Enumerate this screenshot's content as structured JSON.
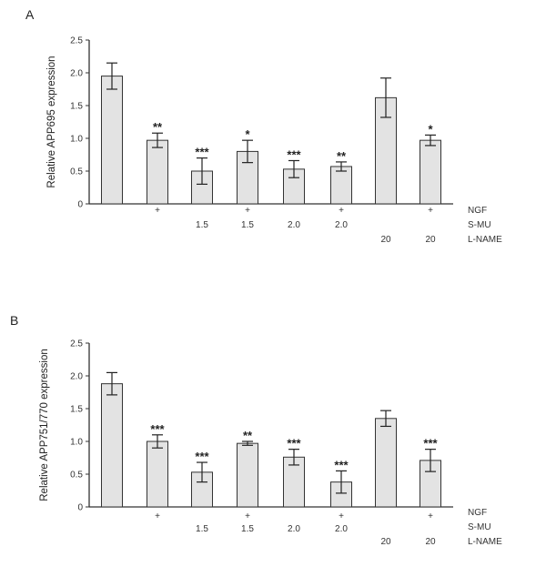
{
  "chart_data": [
    {
      "type": "bar",
      "panel_label": "A",
      "ylabel": "Relative APP695 expression",
      "ylim": [
        0,
        2.5
      ],
      "yticks": [
        "0",
        "0.5",
        "1.0",
        "1.5",
        "2.0",
        "2.5"
      ],
      "row_labels": [
        "NGF",
        "S-MU",
        "L-NAME"
      ],
      "conditions": {
        "ngf": [
          "",
          "+",
          "",
          "+",
          "",
          "+",
          "",
          "+"
        ],
        "smu": [
          "",
          "",
          "1.5",
          "1.5",
          "2.0",
          "2.0",
          "",
          ""
        ],
        "lname": [
          "",
          "",
          "",
          "",
          "",
          "",
          "20",
          "20"
        ]
      },
      "values": [
        1.95,
        0.97,
        0.5,
        0.8,
        0.53,
        0.57,
        1.62,
        0.97
      ],
      "errors": [
        0.2,
        0.11,
        0.2,
        0.17,
        0.13,
        0.07,
        0.3,
        0.08
      ],
      "significance": [
        "",
        "**",
        "***",
        "*",
        "***",
        "**",
        "",
        "*"
      ]
    },
    {
      "type": "bar",
      "panel_label": "B",
      "ylabel": "Relative APP751/770 expression",
      "ylim": [
        0,
        2.5
      ],
      "yticks": [
        "0",
        "0.5",
        "1.0",
        "1.5",
        "2.0",
        "2.5"
      ],
      "row_labels": [
        "NGF",
        "S-MU",
        "L-NAME"
      ],
      "conditions": {
        "ngf": [
          "",
          "+",
          "",
          "+",
          "",
          "+",
          "",
          "+"
        ],
        "smu": [
          "",
          "",
          "1.5",
          "1.5",
          "2.0",
          "2.0",
          "",
          ""
        ],
        "lname": [
          "",
          "",
          "",
          "",
          "",
          "",
          "20",
          "20"
        ]
      },
      "values": [
        1.88,
        1.0,
        0.53,
        0.97,
        0.76,
        0.38,
        1.35,
        0.71
      ],
      "errors": [
        0.17,
        0.1,
        0.15,
        0.03,
        0.12,
        0.17,
        0.12,
        0.17
      ],
      "significance": [
        "",
        "***",
        "***",
        "**",
        "***",
        "***",
        "",
        "***"
      ]
    }
  ]
}
